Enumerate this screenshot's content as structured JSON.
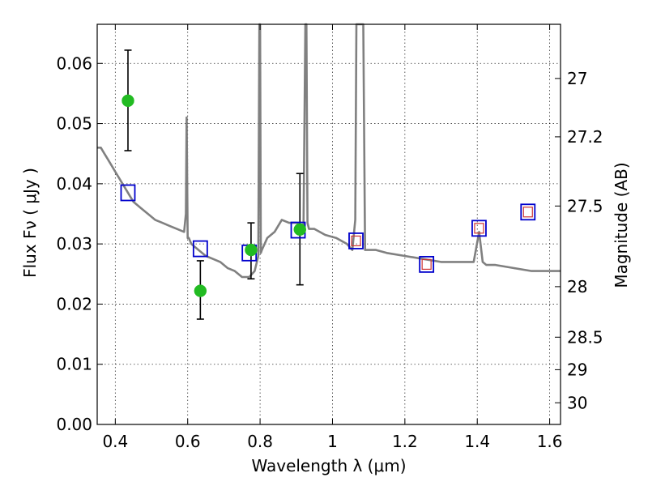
{
  "chart_data": {
    "type": "scatter",
    "title": "",
    "xlabel": "Wavelength  λ (μm)",
    "ylabel": "Flux  Fν  ( μJy )",
    "ylabel_right": "Magnitude (AB)",
    "xlim": [
      0.35,
      1.63
    ],
    "ylim": [
      0.0,
      0.0665
    ],
    "grid": true,
    "legend": "none",
    "x_ticks": [
      0.4,
      0.6,
      0.8,
      1.0,
      1.2,
      1.4,
      1.6
    ],
    "x_tick_labels": [
      "0.4",
      "0.6",
      "0.8",
      "1",
      "1.2",
      "1.4",
      "1.6"
    ],
    "y_ticks": [
      0.0,
      0.01,
      0.02,
      0.03,
      0.04,
      0.05,
      0.06
    ],
    "y_tick_labels": [
      "0.00",
      "0.01",
      "0.02",
      "0.03",
      "0.04",
      "0.05",
      "0.06"
    ],
    "right_ticks": [
      {
        "flux": 0.0575,
        "label": "27"
      },
      {
        "flux": 0.0478,
        "label": "27.2"
      },
      {
        "flux": 0.0363,
        "label": "27.5"
      },
      {
        "flux": 0.0229,
        "label": "28"
      },
      {
        "flux": 0.0145,
        "label": "28.5"
      },
      {
        "flux": 0.0091,
        "label": "29"
      },
      {
        "flux": 0.0036,
        "label": "30"
      }
    ],
    "series": [
      {
        "kind": "model-spectrum",
        "color": "#808080",
        "x": [
          0.35,
          0.36,
          0.37,
          0.38,
          0.39,
          0.4,
          0.41,
          0.42,
          0.43,
          0.44,
          0.45,
          0.47,
          0.49,
          0.51,
          0.53,
          0.55,
          0.57,
          0.59,
          0.595,
          0.597,
          0.6,
          0.603,
          0.61,
          0.63,
          0.65,
          0.67,
          0.69,
          0.71,
          0.73,
          0.75,
          0.77,
          0.785,
          0.795,
          0.798,
          0.8,
          0.802,
          0.805,
          0.82,
          0.84,
          0.86,
          0.88,
          0.9,
          0.92,
          0.925,
          0.928,
          0.931,
          0.935,
          0.95,
          0.98,
          1.01,
          1.04,
          1.055,
          1.063,
          1.066,
          1.07,
          1.075,
          1.08,
          1.085,
          1.09,
          1.12,
          1.15,
          1.2,
          1.25,
          1.3,
          1.35,
          1.39,
          1.405,
          1.415,
          1.425,
          1.45,
          1.5,
          1.55,
          1.6,
          1.63
        ],
        "y": [
          0.046,
          0.046,
          0.045,
          0.044,
          0.043,
          0.042,
          0.041,
          0.04,
          0.039,
          0.038,
          0.037,
          0.036,
          0.035,
          0.034,
          0.0335,
          0.033,
          0.0325,
          0.032,
          0.035,
          0.051,
          0.031,
          0.031,
          0.03,
          0.029,
          0.028,
          0.0275,
          0.027,
          0.026,
          0.0255,
          0.0245,
          0.0245,
          0.0255,
          0.028,
          0.0665,
          0.0665,
          0.0285,
          0.029,
          0.031,
          0.032,
          0.034,
          0.0335,
          0.0335,
          0.033,
          0.0665,
          0.0665,
          0.0335,
          0.0325,
          0.0325,
          0.0315,
          0.031,
          0.03,
          0.029,
          0.034,
          0.0665,
          0.0665,
          0.0665,
          0.0665,
          0.0665,
          0.029,
          0.029,
          0.0285,
          0.028,
          0.0275,
          0.027,
          0.027,
          0.027,
          0.032,
          0.027,
          0.0265,
          0.0265,
          0.026,
          0.0255,
          0.0255,
          0.0255
        ]
      },
      {
        "kind": "model-photometry",
        "marker": "open-square",
        "color": "#0000cc",
        "x": [
          0.435,
          0.635,
          0.77,
          0.905,
          1.065,
          1.26,
          1.405,
          1.54
        ],
        "y": [
          0.0385,
          0.0292,
          0.0285,
          0.0323,
          0.0305,
          0.0266,
          0.0326,
          0.0353
        ]
      },
      {
        "kind": "upper-photometry",
        "marker": "small-open-square",
        "color": "#cc3333",
        "x": [
          1.065,
          1.26,
          1.405,
          1.54
        ],
        "y": [
          0.0305,
          0.0266,
          0.0326,
          0.0353
        ]
      },
      {
        "kind": "observed-photometry",
        "marker": "filled-circle",
        "color": "#22bb22",
        "x": [
          0.435,
          0.635,
          0.775,
          0.91
        ],
        "y": [
          0.0538,
          0.0222,
          0.029,
          0.0324
        ],
        "y_low": [
          0.0455,
          0.0175,
          0.0242,
          0.0232
        ],
        "y_high": [
          0.0622,
          0.0272,
          0.0335,
          0.0417
        ]
      }
    ]
  }
}
